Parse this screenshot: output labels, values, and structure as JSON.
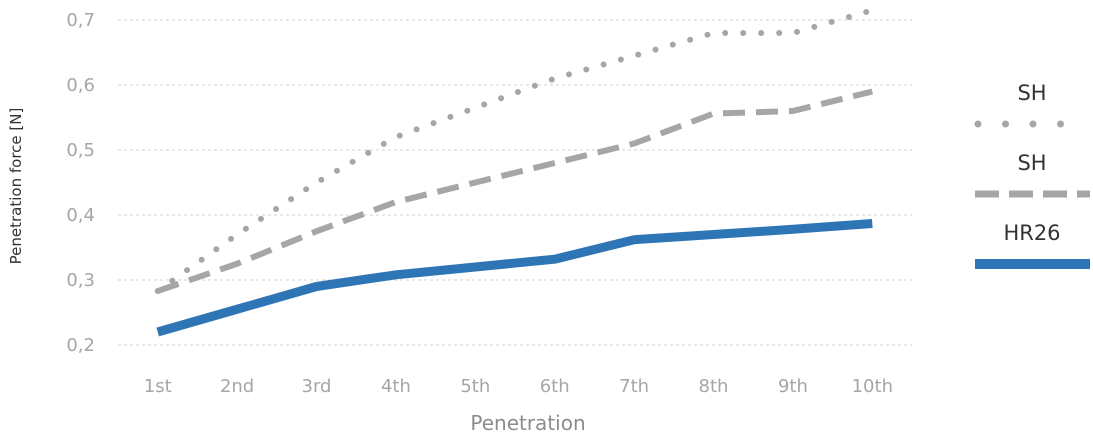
{
  "chart_data": {
    "type": "line",
    "xlabel": "Penetration",
    "ylabel": "Penetration force [N]",
    "categories": [
      "1st",
      "2nd",
      "3rd",
      "4th",
      "5th",
      "6th",
      "7th",
      "8th",
      "9th",
      "10th"
    ],
    "ylim": [
      0.2,
      0.7
    ],
    "yticks": [
      0.2,
      0.3,
      0.4,
      0.5,
      0.6,
      0.7
    ],
    "ytick_labels": [
      "0,2",
      "0,3",
      "0,4",
      "0,5",
      "0,6",
      "0,7"
    ],
    "grid": true,
    "legend_position": "right",
    "series": [
      {
        "name": "SH",
        "style": "dotted",
        "color": "#a6a6a6",
        "values": [
          0.283,
          0.37,
          0.45,
          0.52,
          0.565,
          0.61,
          0.645,
          0.68,
          0.68,
          0.715
        ]
      },
      {
        "name": "SH",
        "style": "dashed",
        "color": "#a6a6a6",
        "values": [
          0.283,
          0.325,
          0.375,
          0.42,
          0.45,
          0.48,
          0.51,
          0.556,
          0.56,
          0.59
        ]
      },
      {
        "name": "HR26",
        "style": "solid",
        "color": "#2e75b6",
        "values": [
          0.22,
          0.255,
          0.29,
          0.308,
          0.32,
          0.332,
          0.362,
          0.37,
          0.378,
          0.387
        ]
      }
    ]
  }
}
